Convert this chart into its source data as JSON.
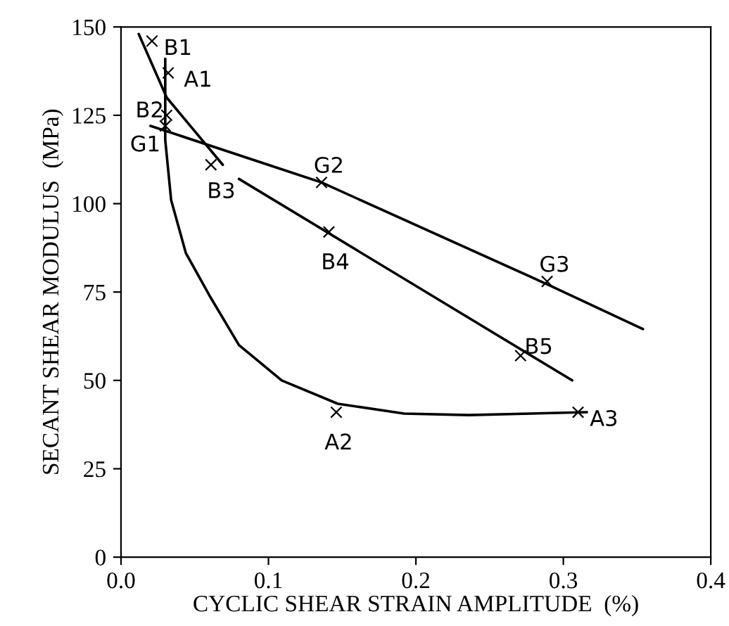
{
  "chart_data": {
    "type": "line",
    "xlabel": "CYCLIC SHEAR STRAIN AMPLITUDE  (%)",
    "ylabel": "SECANT SHEAR MODULUS  (MPa)",
    "xlim": [
      0,
      0.4
    ],
    "xticks": [
      {
        "value": 0,
        "label": "0.0"
      },
      0.1,
      0.2,
      0.3,
      0.4
    ],
    "ylim": [
      0,
      150
    ],
    "yticks": [
      0,
      25,
      50,
      75,
      100,
      125,
      150
    ],
    "grid": false,
    "series": [
      {
        "type": "scatter",
        "marker": "cross",
        "color": "#000000",
        "x": [
          0.021,
          0.032,
          0.031,
          0.03,
          0.061,
          0.136,
          0.141,
          0.289,
          0.271,
          0.146,
          0.31
        ],
        "values": [
          146,
          137,
          125,
          122,
          111,
          106,
          92,
          78,
          57,
          41,
          41
        ]
      },
      {
        "marker": "none",
        "color": "#000000",
        "x": [
          0.02,
          0.136,
          0.29,
          0.354
        ],
        "values": [
          122,
          106,
          77,
          64.5
        ]
      },
      {
        "marker": "none",
        "color": "#000000",
        "x": [
          0.012,
          0.031,
          0.069
        ],
        "values": [
          148,
          130,
          111
        ]
      },
      {
        "marker": "none",
        "color": "#000000",
        "x": [
          0.08,
          0.306
        ],
        "values": [
          107,
          50
        ]
      },
      {
        "marker": "none",
        "color": "#000000",
        "x": [
          0.03,
          0.03,
          0.034,
          0.044,
          0.06,
          0.08,
          0.109,
          0.147,
          0.192,
          0.236,
          0.316
        ],
        "values": [
          141,
          118,
          101,
          86,
          74,
          60,
          50,
          43.4,
          40.6,
          40.2,
          41
        ]
      }
    ],
    "annotations": [
      {
        "text": "B1",
        "x": 0.021,
        "y": 146
      },
      {
        "text": "A1",
        "x": 0.032,
        "y": 137
      },
      {
        "text": "B2",
        "x": 0.031,
        "y": 125
      },
      {
        "text": "G1",
        "x": 0.03,
        "y": 122
      },
      {
        "text": "B3",
        "x": 0.061,
        "y": 111
      },
      {
        "text": "G2",
        "x": 0.136,
        "y": 106
      },
      {
        "text": "B4",
        "x": 0.141,
        "y": 92
      },
      {
        "text": "G3",
        "x": 0.289,
        "y": 78
      },
      {
        "text": "B5",
        "x": 0.271,
        "y": 57
      },
      {
        "text": "A2",
        "x": 0.146,
        "y": 41
      },
      {
        "text": "A3",
        "x": 0.31,
        "y": 41
      }
    ]
  }
}
